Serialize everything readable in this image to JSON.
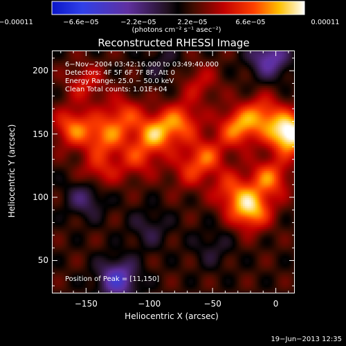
{
  "chart_data": {
    "type": "heatmap",
    "title": "Reconstructed RHESSI Image",
    "xlabel": "Heliocentric X (arcsec)",
    "ylabel": "Heliocentric Y (arcsec)",
    "xlim": [
      -177,
      15
    ],
    "ylim": [
      24,
      216
    ],
    "xticks": [
      "−150",
      "−100",
      "−50",
      "0"
    ],
    "xtick_values": [
      -150,
      -100,
      -50,
      0
    ],
    "yticks": [
      "50",
      "100",
      "150",
      "200"
    ],
    "ytick_values": [
      50,
      100,
      150,
      200
    ],
    "colorbar": {
      "labels": [
        "−0.00011",
        "−6.6e−05",
        "−2.2e−05",
        "2.2e−05",
        "6.6e−05",
        "0.00011"
      ],
      "values": [
        -0.00011,
        -6.6e-05,
        -2.2e-05,
        2.2e-05,
        6.6e-05,
        0.00011
      ],
      "units": "(photons cm⁻² s⁻¹ asec⁻²)"
    },
    "annotations": [
      "6−Nov−2004 03:42:16.000 to 03:49:40.000",
      "Detectors: 4F 5F 6F 7F 8F, Att 0",
      "Energy Range: 25.0 − 50.0 keV",
      "Clean     Total counts: 1.01E+04",
      "Position of Peak = [11,150]"
    ],
    "blobs": [
      {
        "x": -160,
        "y": 155,
        "v": 6e-05
      },
      {
        "x": -135,
        "y": 148,
        "v": 5.5e-05
      },
      {
        "x": -120,
        "y": 165,
        "v": 4.5e-05
      },
      {
        "x": -95,
        "y": 150,
        "v": 7e-05
      },
      {
        "x": -75,
        "y": 160,
        "v": 5.5e-05
      },
      {
        "x": -55,
        "y": 132,
        "v": 5e-05
      },
      {
        "x": -30,
        "y": 155,
        "v": 6.5e-05
      },
      {
        "x": -10,
        "y": 165,
        "v": 5.5e-05
      },
      {
        "x": 11,
        "y": 150,
        "v": 0.00011
      },
      {
        "x": -20,
        "y": 90,
        "v": 8e-05
      },
      {
        "x": -5,
        "y": 115,
        "v": 6e-05
      },
      {
        "x": -35,
        "y": 105,
        "v": 4.5e-05
      },
      {
        "x": -140,
        "y": 120,
        "v": 4e-05
      },
      {
        "x": -110,
        "y": 130,
        "v": 4e-05
      },
      {
        "x": -70,
        "y": 120,
        "v": 3e-05
      },
      {
        "x": -150,
        "y": 190,
        "v": 3.5e-05
      },
      {
        "x": -60,
        "y": 190,
        "v": 3e-05
      },
      {
        "x": -150,
        "y": 100,
        "v": -4e-05
      },
      {
        "x": -125,
        "y": 35,
        "v": -7e-05
      },
      {
        "x": -100,
        "y": 75,
        "v": -2.5e-05
      },
      {
        "x": -50,
        "y": 60,
        "v": -2e-05
      },
      {
        "x": -5,
        "y": 210,
        "v": -6e-05
      },
      {
        "x": -90,
        "y": 205,
        "v": -2e-05
      }
    ]
  },
  "timestamp": "19−Jun−2013 12:35"
}
